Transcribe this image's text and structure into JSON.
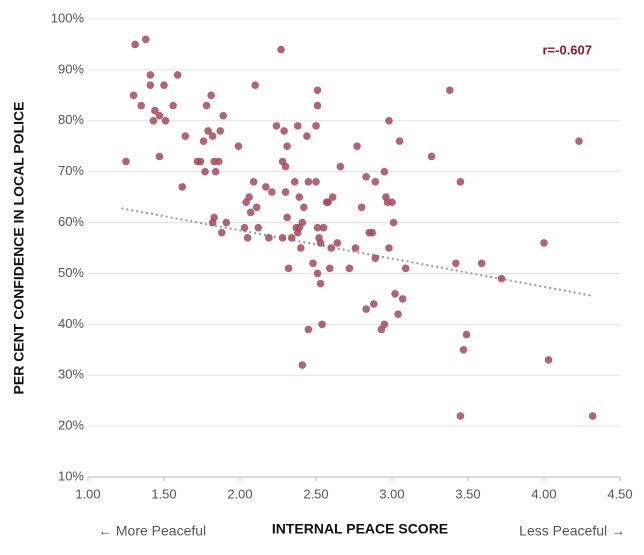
{
  "chart_data": {
    "type": "scatter",
    "x_label": "INTERNAL PEACE SCORE",
    "y_label": "PER CENT CONFIDENCE IN LOCAL POLICE",
    "left_note": "← More Peaceful",
    "right_note": "Less Peaceful →",
    "annotation": "r=-0.607",
    "annotation_color": "#8b1a2b",
    "color": "#a34a5c",
    "trend_color": "#999999",
    "grid": true,
    "xlim": [
      1.0,
      4.5
    ],
    "ylim": [
      10,
      100
    ],
    "xticks": [
      {
        "value": 1.0,
        "label": "1.00"
      },
      {
        "value": 1.5,
        "label": "1.50"
      },
      {
        "value": 2.0,
        "label": "2.00"
      },
      {
        "value": 2.5,
        "label": "2.50"
      },
      {
        "value": 3.0,
        "label": "3.00"
      },
      {
        "value": 3.5,
        "label": "3.50"
      },
      {
        "value": 4.0,
        "label": "4.00"
      },
      {
        "value": 4.5,
        "label": "4.50"
      }
    ],
    "yticks": [
      {
        "value": 10,
        "label": "10%"
      },
      {
        "value": 20,
        "label": "20%"
      },
      {
        "value": 30,
        "label": "30%"
      },
      {
        "value": 40,
        "label": "40%"
      },
      {
        "value": 50,
        "label": "50%"
      },
      {
        "value": 60,
        "label": "60%"
      },
      {
        "value": 70,
        "label": "70%"
      },
      {
        "value": 80,
        "label": "80%"
      },
      {
        "value": 90,
        "label": "90%"
      },
      {
        "value": 100,
        "label": "100%"
      }
    ],
    "trendline": {
      "x": [
        1.22,
        4.32
      ],
      "y": [
        62.8,
        45.6
      ]
    },
    "x": [
      1.25,
      1.3,
      1.31,
      1.35,
      1.38,
      1.41,
      1.41,
      1.44,
      1.43,
      1.47,
      1.47,
      1.5,
      1.51,
      1.56,
      1.59,
      1.62,
      1.64,
      1.72,
      1.74,
      1.76,
      1.77,
      1.78,
      1.79,
      1.81,
      1.82,
      1.83,
      1.82,
      1.83,
      1.84,
      1.86,
      1.87,
      1.88,
      1.89,
      1.91,
      1.99,
      2.03,
      2.04,
      2.05,
      2.06,
      2.07,
      2.09,
      2.1,
      2.11,
      2.12,
      2.17,
      2.19,
      2.21,
      2.24,
      2.27,
      2.28,
      2.28,
      2.29,
      2.3,
      2.3,
      2.31,
      2.31,
      2.32,
      2.34,
      2.36,
      2.37,
      2.38,
      2.38,
      2.39,
      2.39,
      2.4,
      2.41,
      2.42,
      2.41,
      2.44,
      2.45,
      2.45,
      2.48,
      2.5,
      2.5,
      2.51,
      2.51,
      2.51,
      2.51,
      2.52,
      2.53,
      2.53,
      2.54,
      2.55,
      2.57,
      2.58,
      2.59,
      2.6,
      2.61,
      2.64,
      2.66,
      2.72,
      2.76,
      2.77,
      2.8,
      2.83,
      2.83,
      2.85,
      2.87,
      2.88,
      2.89,
      2.89,
      2.93,
      2.95,
      2.95,
      2.96,
      2.97,
      2.98,
      2.98,
      3.0,
      3.01,
      3.02,
      3.04,
      3.05,
      3.07,
      3.09,
      3.26,
      3.38,
      3.42,
      3.45,
      3.45,
      3.47,
      3.49,
      3.59,
      3.72,
      4.0,
      4.03,
      4.23,
      4.32
    ],
    "values": [
      72,
      85,
      95,
      83,
      96,
      89,
      87,
      82,
      80,
      81,
      73,
      87,
      80,
      83,
      89,
      67,
      77,
      72,
      72,
      76,
      70,
      83,
      78,
      85,
      77,
      72,
      60,
      61,
      70,
      72,
      78,
      58,
      81,
      60,
      75,
      59,
      64,
      57,
      65,
      62,
      68,
      87,
      63,
      59,
      67,
      57,
      66,
      79,
      94,
      57,
      72,
      78,
      71,
      66,
      75,
      61,
      51,
      57,
      68,
      59,
      58,
      79,
      65,
      59,
      55,
      60,
      63,
      32,
      77,
      39,
      68,
      52,
      79,
      68,
      83,
      86,
      59,
      50,
      57,
      48,
      56,
      40,
      59,
      64,
      64,
      51,
      55,
      65,
      56,
      71,
      51,
      55,
      75,
      63,
      69,
      43,
      58,
      58,
      44,
      68,
      53,
      39,
      40,
      70,
      65,
      64,
      80,
      55,
      64,
      60,
      46,
      42,
      76,
      45,
      51,
      73,
      86,
      52,
      68,
      22,
      35,
      38,
      52,
      49,
      56,
      33,
      76,
      22
    ]
  }
}
